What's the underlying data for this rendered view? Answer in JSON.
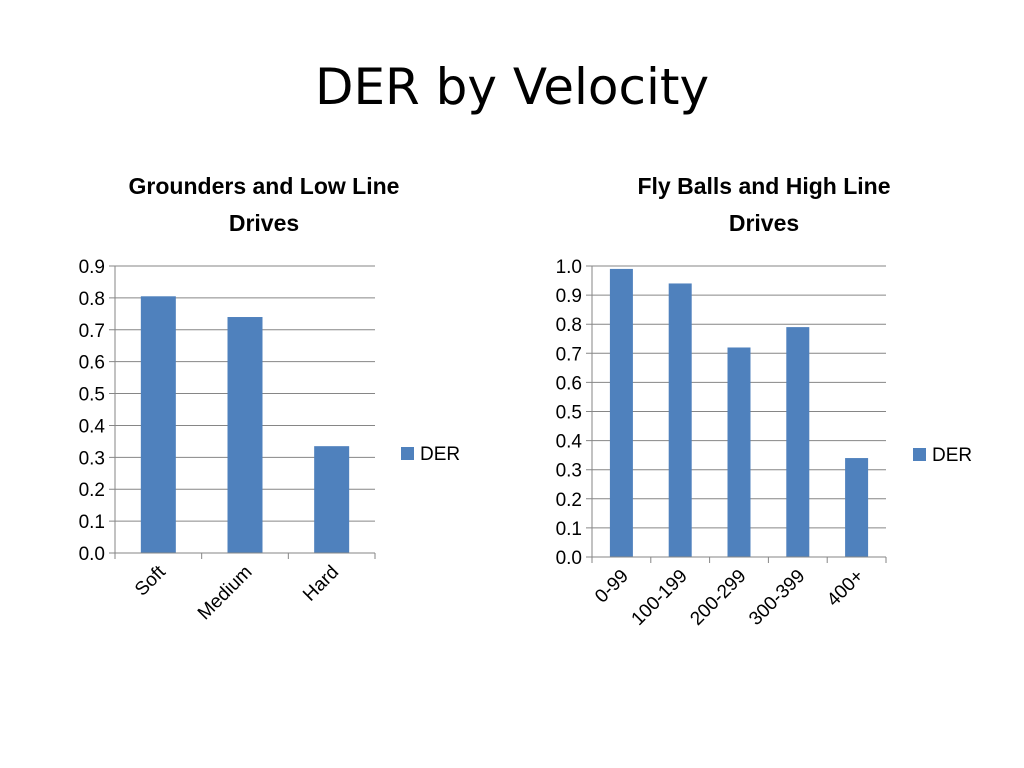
{
  "slide": {
    "title": "DER by Velocity"
  },
  "chart_data": [
    {
      "type": "bar",
      "title_lines": [
        "Grounders and Low Line",
        "Drives"
      ],
      "categories": [
        "Soft",
        "Medium",
        "Hard"
      ],
      "series": [
        {
          "name": "DER",
          "values": [
            0.805,
            0.74,
            0.335
          ]
        }
      ],
      "ylim": [
        0,
        0.9
      ],
      "yticks": [
        "0.0",
        "0.1",
        "0.2",
        "0.3",
        "0.4",
        "0.5",
        "0.6",
        "0.7",
        "0.8",
        "0.9"
      ],
      "grid": true,
      "legend": "right",
      "color": "#4f81bd"
    },
    {
      "type": "bar",
      "title_lines": [
        "Fly Balls and High Line",
        "Drives"
      ],
      "categories": [
        "0-99",
        "100-199",
        "200-299",
        "300-399",
        "400+"
      ],
      "series": [
        {
          "name": "DER",
          "values": [
            0.99,
            0.94,
            0.72,
            0.79,
            0.34
          ]
        }
      ],
      "ylim": [
        0,
        1.0
      ],
      "yticks": [
        "0.0",
        "0.1",
        "0.2",
        "0.3",
        "0.4",
        "0.5",
        "0.6",
        "0.7",
        "0.8",
        "0.9",
        "1.0"
      ],
      "grid": true,
      "legend": "right",
      "color": "#4f81bd"
    }
  ]
}
